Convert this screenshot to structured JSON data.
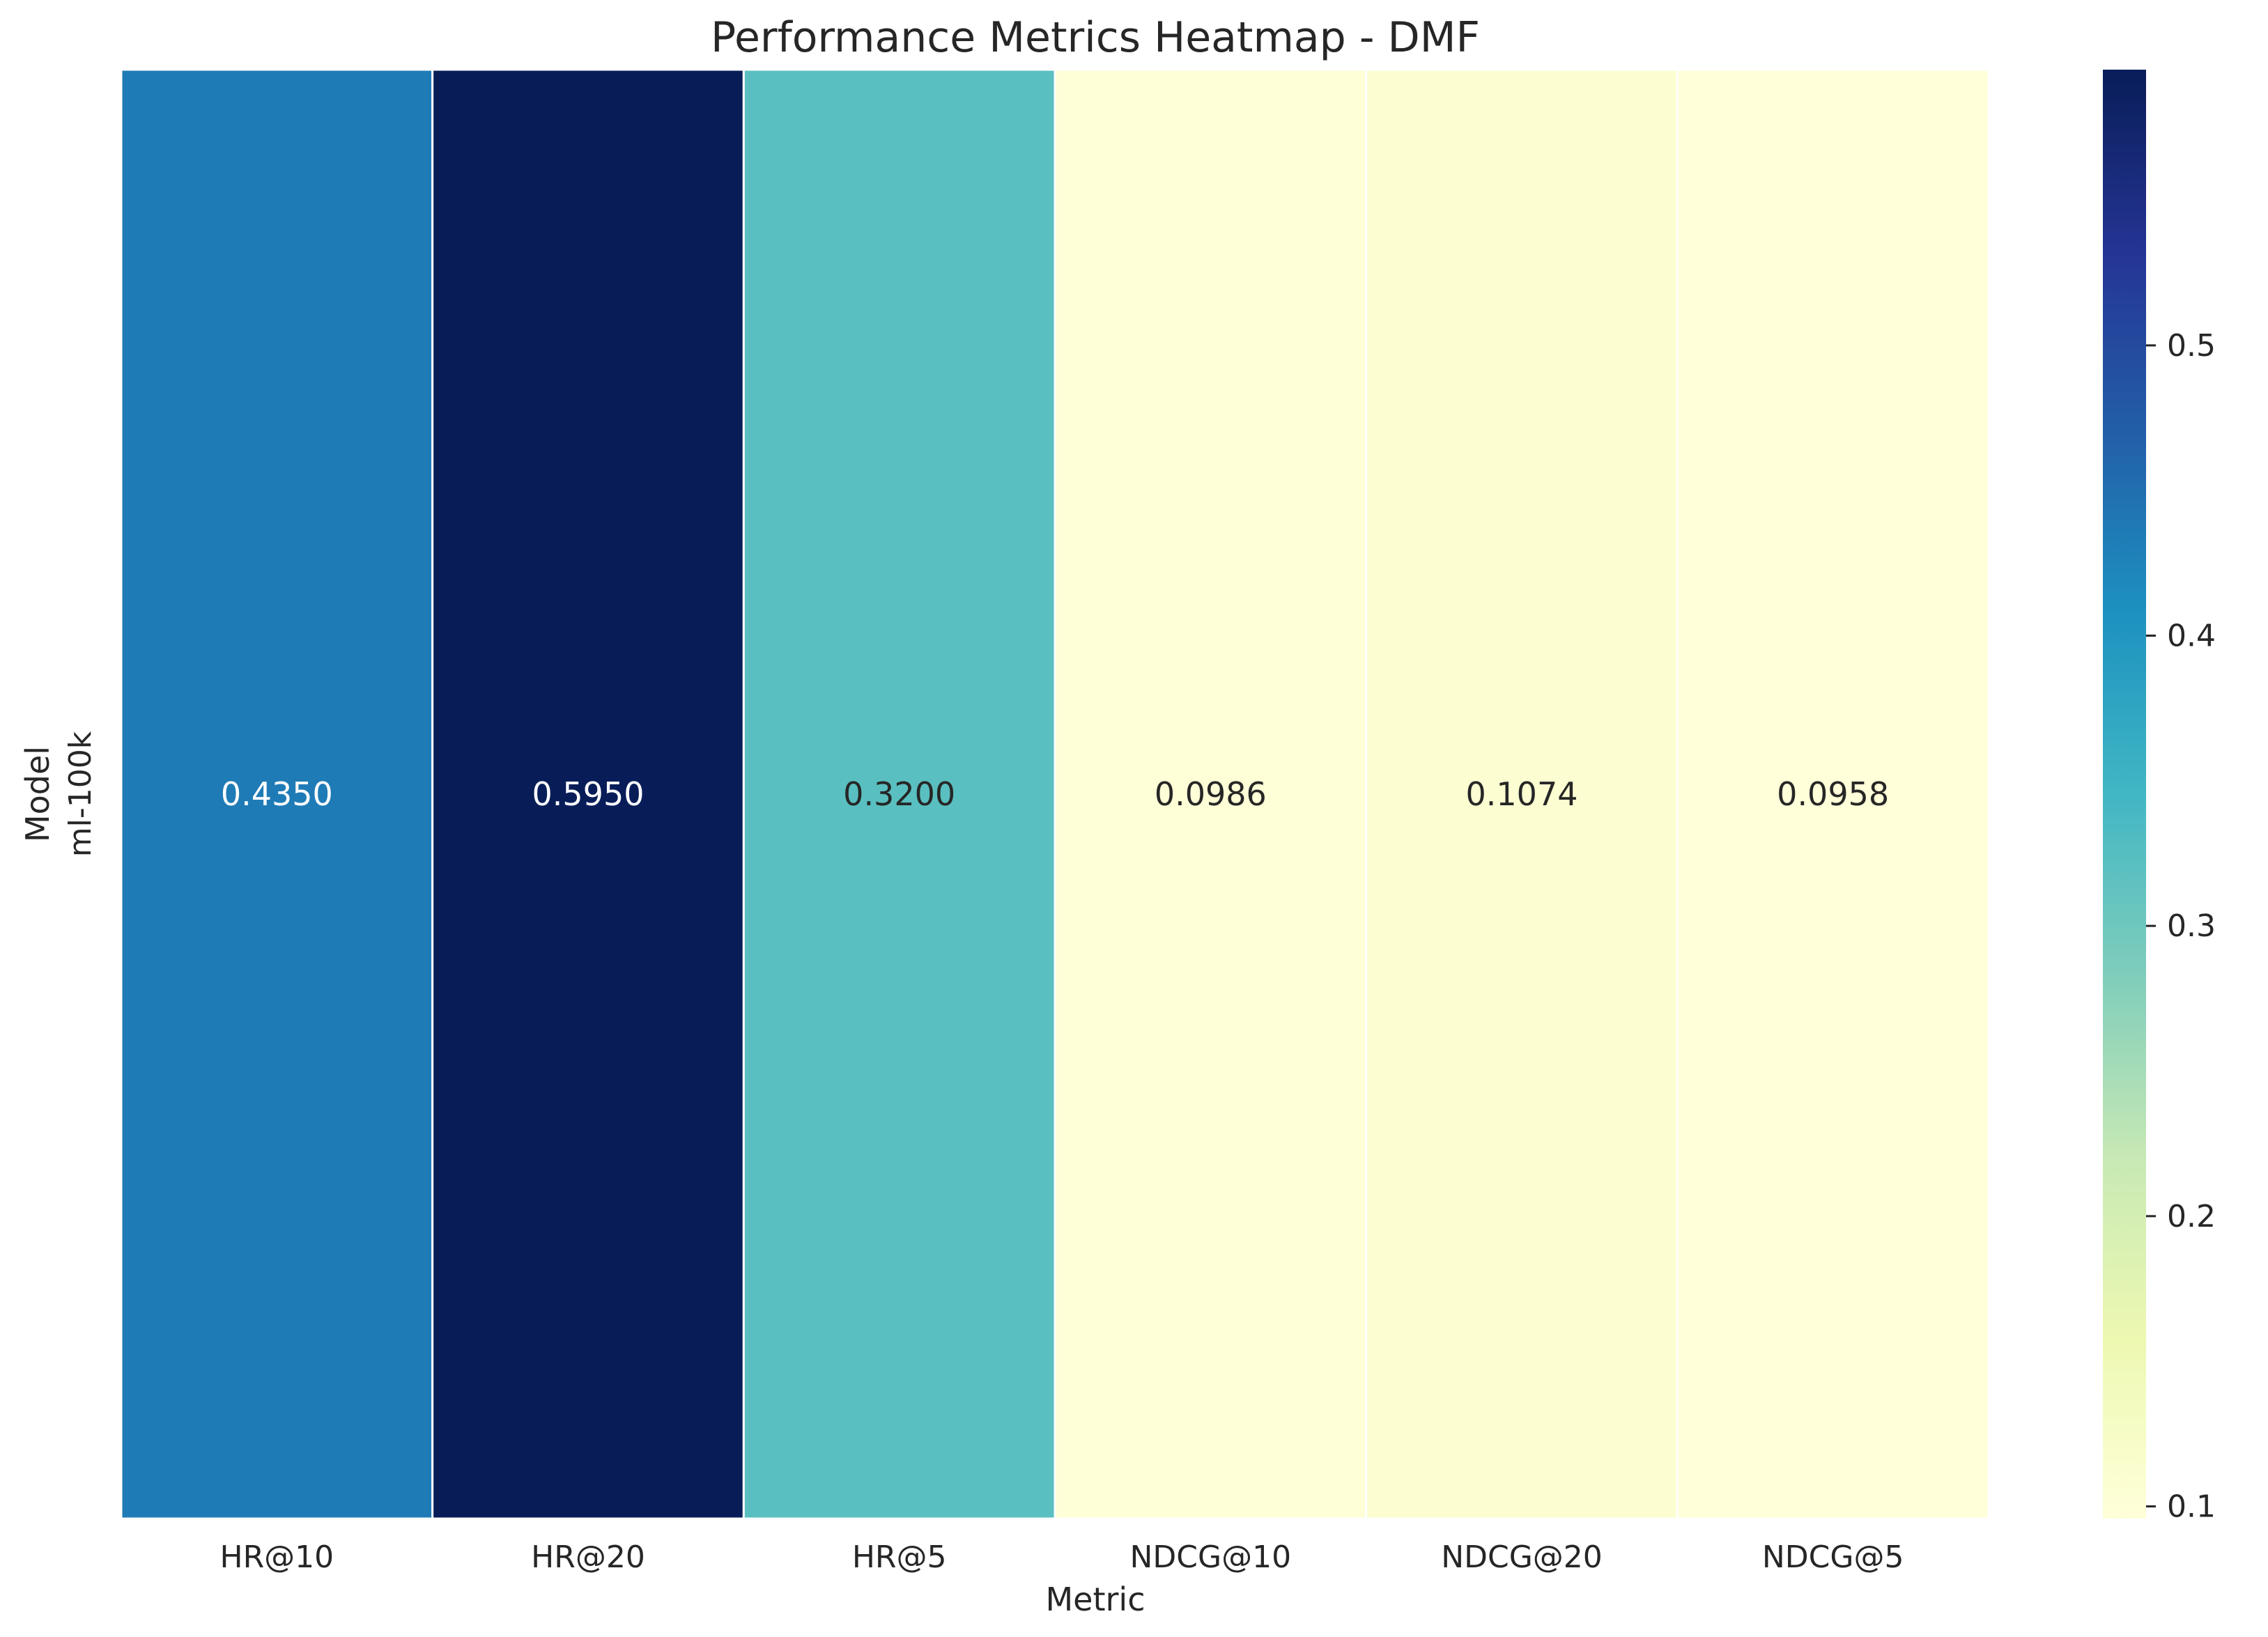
{
  "chart_data": {
    "type": "heatmap",
    "title": "Performance Metrics Heatmap - DMF",
    "xlabel": "Metric",
    "ylabel": "Model",
    "x_categories": [
      "HR@10",
      "HR@20",
      "HR@5",
      "NDCG@10",
      "NDCG@20",
      "NDCG@5"
    ],
    "y_categories": [
      "ml-100k"
    ],
    "values": [
      [
        0.435,
        0.595,
        0.32,
        0.0986,
        0.1074,
        0.0958
      ]
    ],
    "value_labels": [
      "0.4350",
      "0.5950",
      "0.3200",
      "0.0986",
      "0.1074",
      "0.0958"
    ],
    "colorbar": {
      "range": [
        0.0958,
        0.595
      ],
      "ticks": [
        0.1,
        0.2,
        0.3,
        0.4,
        0.5
      ],
      "tick_labels": [
        "0.1",
        "0.2",
        "0.3",
        "0.4",
        "0.5"
      ],
      "colormap": "YlGnBu"
    },
    "grid": false,
    "legend": "colorbar-right"
  }
}
